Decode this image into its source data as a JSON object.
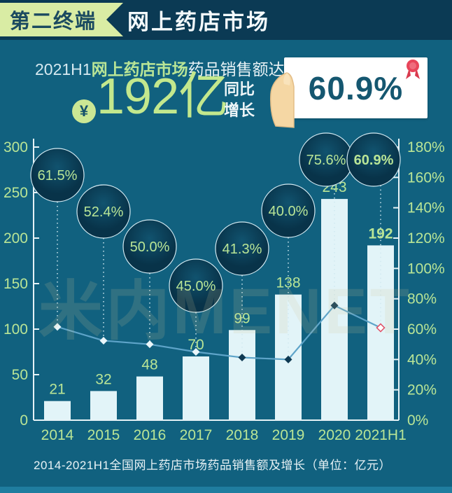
{
  "header": {
    "ribbon_label": "第二终端",
    "title": "网上药店市场"
  },
  "summary": {
    "line1_prefix": "2021H1",
    "line1_highlight": "网上药店市场",
    "line1_suffix": "药品销售额达",
    "currency_symbol": "¥",
    "amount": "192亿",
    "growth_label_line1": "同比",
    "growth_label_line2": "增长",
    "growth_value": "60.9%"
  },
  "watermark": "米内MENET",
  "chart_data": {
    "type": "bar+line",
    "title": "2014-2021H1全国网上药店市场药品销售额及增长（单位：亿元）",
    "categories": [
      "2014",
      "2015",
      "2016",
      "2017",
      "2018",
      "2019",
      "2020",
      "2021H1"
    ],
    "series": [
      {
        "name": "药品销售额（亿元）",
        "type": "bar",
        "values": [
          21,
          32,
          48,
          70,
          99,
          138,
          243,
          192
        ]
      },
      {
        "name": "同比增长（%）",
        "type": "line",
        "values": [
          61.5,
          52.4,
          50.0,
          45.0,
          41.3,
          40.0,
          75.6,
          60.9
        ]
      }
    ],
    "left_axis": {
      "min": 0,
      "max": 300,
      "ticks": [
        0,
        50,
        100,
        150,
        200,
        250,
        300
      ]
    },
    "right_axis": {
      "min": 0,
      "max": 180,
      "ticks": [
        0,
        20,
        40,
        60,
        80,
        100,
        120,
        140,
        160,
        180
      ],
      "suffix": "%"
    },
    "grid": false,
    "legend": "none",
    "colors": {
      "background": "#11617f",
      "bar_fill": "#e2f4f8",
      "axis": "#e6f2f6",
      "green_label": "#b9e596",
      "line": "#5ea4c9",
      "marker_light": "#eaf6fa",
      "marker_dark": "#0e3952",
      "marker_highlight_stroke": "#e0556b",
      "bubble_fill": "#0b4259",
      "bubble_stroke": "#d5ecf4",
      "connector": "#cfe8f0"
    }
  }
}
